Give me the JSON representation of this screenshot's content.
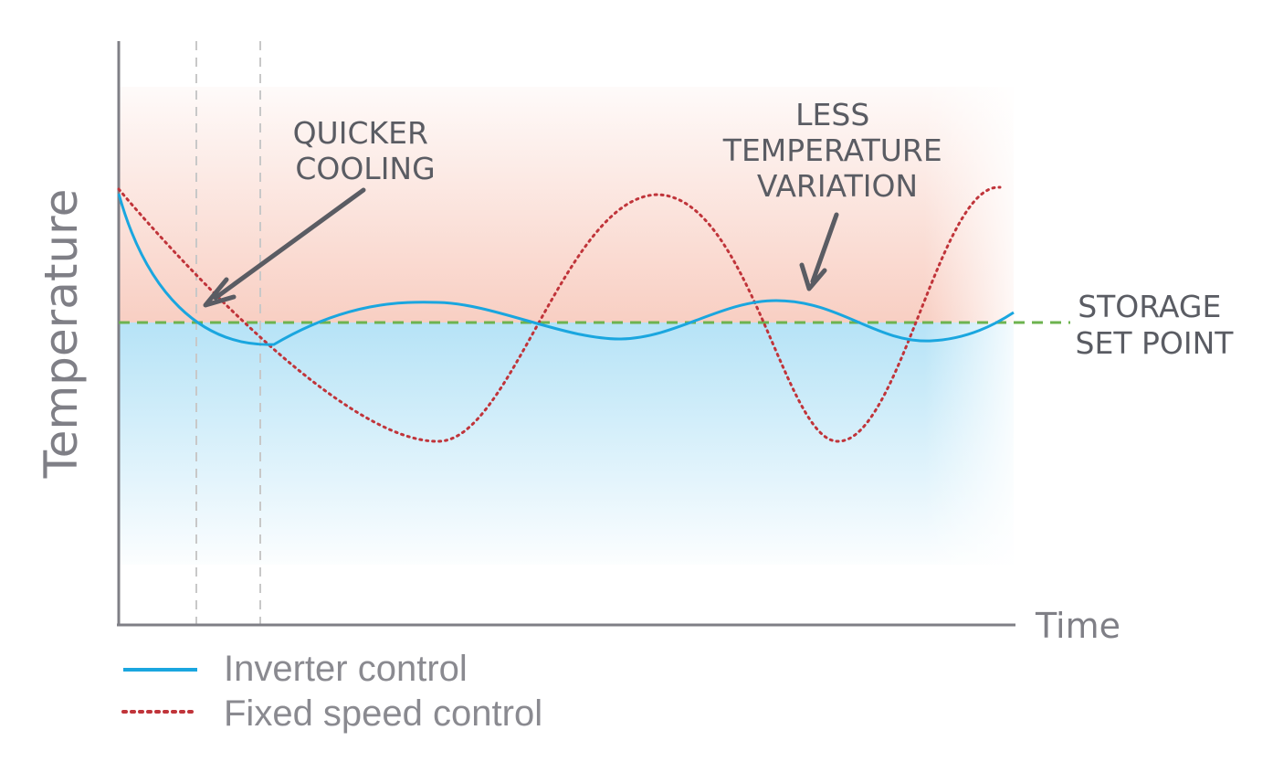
{
  "chart_data": {
    "type": "line",
    "xlabel": "Time",
    "ylabel": "Temperature",
    "setpoint": {
      "label_lines": [
        "STORAGE",
        "SET POINT"
      ],
      "color": "#6db34f"
    },
    "annotations": [
      {
        "id": "quicker-cooling",
        "lines": [
          "QUICKER",
          "COOLING"
        ]
      },
      {
        "id": "less-variation",
        "lines": [
          "LESS",
          "TEMPERATURE",
          "VARIATION"
        ]
      }
    ],
    "series": [
      {
        "name": "Inverter control",
        "style": "solid",
        "color": "#1aa6df"
      },
      {
        "name": "Fixed speed control",
        "style": "dotted",
        "color": "#c0343a"
      }
    ],
    "colors": {
      "warm_zone": "#f7c6b8",
      "cool_zone": "#a9def5",
      "axis": "#7f7f86",
      "guide": "#c8c8c8",
      "arrow": "#5a5c63"
    }
  }
}
